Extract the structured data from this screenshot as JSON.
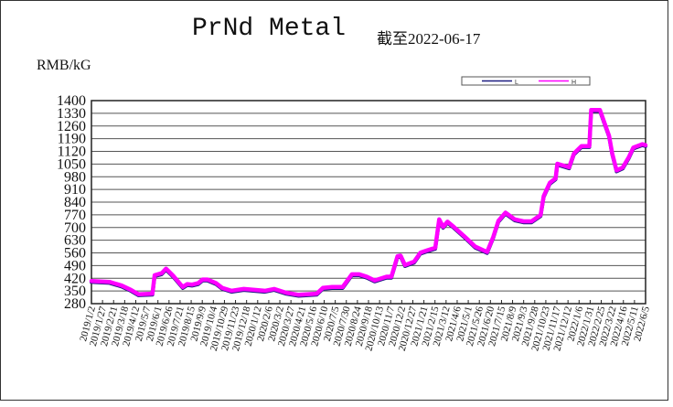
{
  "chart_data": {
    "type": "line",
    "title": "PrNd Metal",
    "subtitle": "截至2022-06-17",
    "ylabel": "RMB/kG",
    "xlabel": "",
    "ylim": [
      280,
      1400
    ],
    "yticks": [
      1400,
      1330,
      1260,
      1190,
      1120,
      1050,
      980,
      910,
      840,
      770,
      700,
      630,
      560,
      490,
      420,
      350,
      280
    ],
    "xlim": [
      "2019-01-02",
      "2022-06-17"
    ],
    "xticks": [
      "2019/1/2",
      "2019/1/27",
      "2019/2/21",
      "2019/3/18",
      "2019/4/12",
      "2019/5/7",
      "2019/6/1",
      "2019/6/26",
      "2019/7/21",
      "2019/8/15",
      "2019/9/9",
      "2019/10/4",
      "2019/10/29",
      "2019/11/23",
      "2019/12/18",
      "2020/1/12",
      "2020/2/6",
      "2020/3/2",
      "2020/3/27",
      "2020/4/21",
      "2020/5/16",
      "2020/6/10",
      "2020/7/5",
      "2020/7/30",
      "2020/8/24",
      "2020/9/18",
      "2020/10/13",
      "2020/11/7",
      "2020/12/2",
      "2020/12/27",
      "2021/1/21",
      "2021/2/15",
      "2021/3/12",
      "2021/4/6",
      "2021/5/1",
      "2021/5/26",
      "2021/6/20",
      "2021/7/15",
      "2021/8/9",
      "2021/9/3",
      "2021/9/28",
      "2021/10/23",
      "2021/11/17",
      "2021/12/12",
      "2022/1/6",
      "2022/1/31",
      "2022/2/25",
      "2022/3/22",
      "2022/4/16",
      "2022/5/11",
      "2022/6/5"
    ],
    "grid": true,
    "legend": {
      "placement": "top-right",
      "entries": [
        {
          "name": "L",
          "color": "#1a1a80"
        },
        {
          "name": "H",
          "color": "#ff00ff"
        }
      ]
    },
    "series": [
      {
        "name": "L",
        "color": "#1a1a80",
        "points": [
          [
            "2019-01-02",
            399
          ],
          [
            "2019-02-12",
            394
          ],
          [
            "2019-03-12",
            374
          ],
          [
            "2019-04-02",
            350
          ],
          [
            "2019-04-19",
            326
          ],
          [
            "2019-05-21",
            329
          ],
          [
            "2019-05-26",
            431
          ],
          [
            "2019-06-11",
            442
          ],
          [
            "2019-06-21",
            467
          ],
          [
            "2019-07-08",
            426
          ],
          [
            "2019-07-29",
            366
          ],
          [
            "2019-08-08",
            382
          ],
          [
            "2019-08-19",
            379
          ],
          [
            "2019-09-02",
            387
          ],
          [
            "2019-09-12",
            407
          ],
          [
            "2019-09-23",
            407
          ],
          [
            "2019-10-13",
            387
          ],
          [
            "2019-10-27",
            361
          ],
          [
            "2019-11-17",
            345
          ],
          [
            "2019-12-15",
            355
          ],
          [
            "2020-02-01",
            345
          ],
          [
            "2020-02-22",
            355
          ],
          [
            "2020-03-21",
            334
          ],
          [
            "2020-04-18",
            323
          ],
          [
            "2020-05-29",
            329
          ],
          [
            "2020-06-12",
            361
          ],
          [
            "2020-07-03",
            366
          ],
          [
            "2020-07-27",
            366
          ],
          [
            "2020-08-17",
            436
          ],
          [
            "2020-09-03",
            436
          ],
          [
            "2020-09-20",
            423
          ],
          [
            "2020-10-08",
            402
          ],
          [
            "2020-11-04",
            423
          ],
          [
            "2020-11-15",
            423
          ],
          [
            "2020-11-29",
            536
          ],
          [
            "2020-12-06",
            539
          ],
          [
            "2020-12-16",
            487
          ],
          [
            "2021-01-06",
            506
          ],
          [
            "2021-01-20",
            555
          ],
          [
            "2021-02-06",
            569
          ],
          [
            "2021-02-23",
            582
          ],
          [
            "2021-03-04",
            739
          ],
          [
            "2021-03-13",
            698
          ],
          [
            "2021-03-23",
            726
          ],
          [
            "2021-04-06",
            698
          ],
          [
            "2021-05-04",
            637
          ],
          [
            "2021-05-25",
            589
          ],
          [
            "2021-06-21",
            559
          ],
          [
            "2021-07-05",
            642
          ],
          [
            "2021-07-17",
            731
          ],
          [
            "2021-08-02",
            776
          ],
          [
            "2021-08-23",
            739
          ],
          [
            "2021-09-12",
            728
          ],
          [
            "2021-09-30",
            728
          ],
          [
            "2021-10-21",
            763
          ],
          [
            "2021-10-28",
            868
          ],
          [
            "2021-11-11",
            941
          ],
          [
            "2021-11-24",
            965
          ],
          [
            "2021-11-28",
            1046
          ],
          [
            "2021-12-25",
            1026
          ],
          [
            "2022-01-05",
            1103
          ],
          [
            "2022-01-22",
            1143
          ],
          [
            "2022-02-09",
            1143
          ],
          [
            "2022-02-13",
            1342
          ],
          [
            "2022-03-05",
            1342
          ],
          [
            "2022-03-26",
            1200
          ],
          [
            "2022-04-02",
            1103
          ],
          [
            "2022-04-12",
            1009
          ],
          [
            "2022-04-26",
            1025
          ],
          [
            "2022-05-10",
            1083
          ],
          [
            "2022-05-20",
            1135
          ],
          [
            "2022-06-10",
            1154
          ],
          [
            "2022-06-17",
            1148
          ]
        ]
      },
      {
        "name": "H",
        "color": "#ff00ff",
        "points": [
          [
            "2019-01-02",
            405
          ],
          [
            "2019-02-12",
            400
          ],
          [
            "2019-03-12",
            380
          ],
          [
            "2019-04-02",
            356
          ],
          [
            "2019-04-19",
            332
          ],
          [
            "2019-05-21",
            335
          ],
          [
            "2019-05-26",
            437
          ],
          [
            "2019-06-11",
            448
          ],
          [
            "2019-06-21",
            473
          ],
          [
            "2019-07-08",
            432
          ],
          [
            "2019-07-29",
            372
          ],
          [
            "2019-08-08",
            388
          ],
          [
            "2019-08-19",
            385
          ],
          [
            "2019-09-02",
            393
          ],
          [
            "2019-09-12",
            413
          ],
          [
            "2019-09-23",
            413
          ],
          [
            "2019-10-13",
            393
          ],
          [
            "2019-10-27",
            367
          ],
          [
            "2019-11-17",
            351
          ],
          [
            "2019-12-15",
            361
          ],
          [
            "2020-02-01",
            351
          ],
          [
            "2020-02-22",
            361
          ],
          [
            "2020-03-21",
            340
          ],
          [
            "2020-04-18",
            329
          ],
          [
            "2020-05-29",
            335
          ],
          [
            "2020-06-12",
            367
          ],
          [
            "2020-07-03",
            372
          ],
          [
            "2020-07-27",
            372
          ],
          [
            "2020-08-17",
            442
          ],
          [
            "2020-09-03",
            442
          ],
          [
            "2020-09-20",
            429
          ],
          [
            "2020-10-08",
            408
          ],
          [
            "2020-11-04",
            429
          ],
          [
            "2020-11-15",
            429
          ],
          [
            "2020-11-29",
            542
          ],
          [
            "2020-12-06",
            545
          ],
          [
            "2020-12-16",
            493
          ],
          [
            "2021-01-06",
            512
          ],
          [
            "2021-01-20",
            561
          ],
          [
            "2021-02-06",
            575
          ],
          [
            "2021-02-23",
            588
          ],
          [
            "2021-03-04",
            745
          ],
          [
            "2021-03-13",
            704
          ],
          [
            "2021-03-23",
            732
          ],
          [
            "2021-04-06",
            704
          ],
          [
            "2021-05-04",
            643
          ],
          [
            "2021-05-25",
            595
          ],
          [
            "2021-06-21",
            565
          ],
          [
            "2021-07-05",
            648
          ],
          [
            "2021-07-17",
            737
          ],
          [
            "2021-08-02",
            782
          ],
          [
            "2021-08-23",
            745
          ],
          [
            "2021-09-12",
            734
          ],
          [
            "2021-09-30",
            734
          ],
          [
            "2021-10-21",
            769
          ],
          [
            "2021-10-28",
            874
          ],
          [
            "2021-11-11",
            947
          ],
          [
            "2021-11-24",
            971
          ],
          [
            "2021-11-28",
            1052
          ],
          [
            "2021-12-25",
            1032
          ],
          [
            "2022-01-05",
            1109
          ],
          [
            "2022-01-22",
            1149
          ],
          [
            "2022-02-09",
            1149
          ],
          [
            "2022-02-13",
            1348
          ],
          [
            "2022-03-05",
            1348
          ],
          [
            "2022-03-26",
            1206
          ],
          [
            "2022-04-02",
            1109
          ],
          [
            "2022-04-12",
            1015
          ],
          [
            "2022-04-26",
            1031
          ],
          [
            "2022-05-10",
            1089
          ],
          [
            "2022-05-20",
            1141
          ],
          [
            "2022-06-10",
            1160
          ],
          [
            "2022-06-17",
            1154
          ]
        ]
      }
    ]
  }
}
